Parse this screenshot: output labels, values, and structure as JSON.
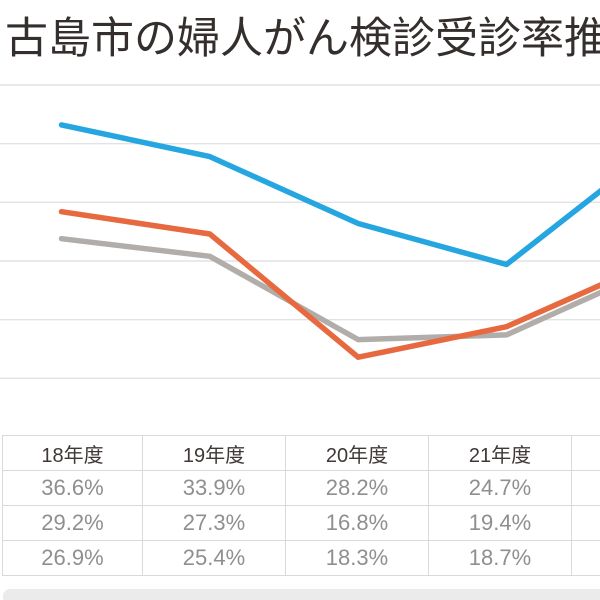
{
  "page": {
    "title": "古島市の婦人がん検診受診率推移"
  },
  "chart_data": {
    "type": "line",
    "title": "古島市の婦人がん検診受診率推移",
    "categories": [
      "18年度",
      "19年度",
      "20年度",
      "21年度"
    ],
    "series": [
      {
        "name": "blue-series",
        "color": "#25a6e0",
        "values": [
          36.6,
          33.9,
          28.2,
          24.7
        ],
        "offscreen_next_value_estimate": 34.6
      },
      {
        "name": "orange-series",
        "color": "#e76940",
        "values": [
          29.2,
          27.3,
          16.8,
          19.4
        ],
        "offscreen_next_value_estimate": 25.0
      },
      {
        "name": "gray-series",
        "color": "#b0adaa",
        "values": [
          26.9,
          25.4,
          18.3,
          18.7
        ],
        "offscreen_next_value_estimate": 24.4
      }
    ],
    "unit": "%",
    "y_axis": {
      "gridline_values": [
        40,
        35,
        30,
        25,
        20,
        15
      ],
      "labels_visible": false
    },
    "grid": true,
    "legend_visible": false,
    "cropped_right_edge": true
  },
  "table": {
    "headers": [
      "18年度",
      "19年度",
      "20年度",
      "21年度",
      ""
    ],
    "rows": [
      [
        "36.6%",
        "33.9%",
        "28.2%",
        "24.7%",
        ""
      ],
      [
        "29.2%",
        "27.3%",
        "16.8%",
        "19.4%",
        ""
      ],
      [
        "26.9%",
        "25.4%",
        "18.3%",
        "18.7%",
        ""
      ]
    ]
  },
  "colors": {
    "title_text": "#342e2c",
    "header_text": "#3f3836",
    "cell_text": "#8f8f8f",
    "gridline": "#e2e2e2",
    "table_border": "#d9d9d9",
    "bottom_bar": "#ebebeb",
    "blue_line": "#25a6e0",
    "orange_line": "#e76940",
    "gray_line": "#b0adaa"
  }
}
